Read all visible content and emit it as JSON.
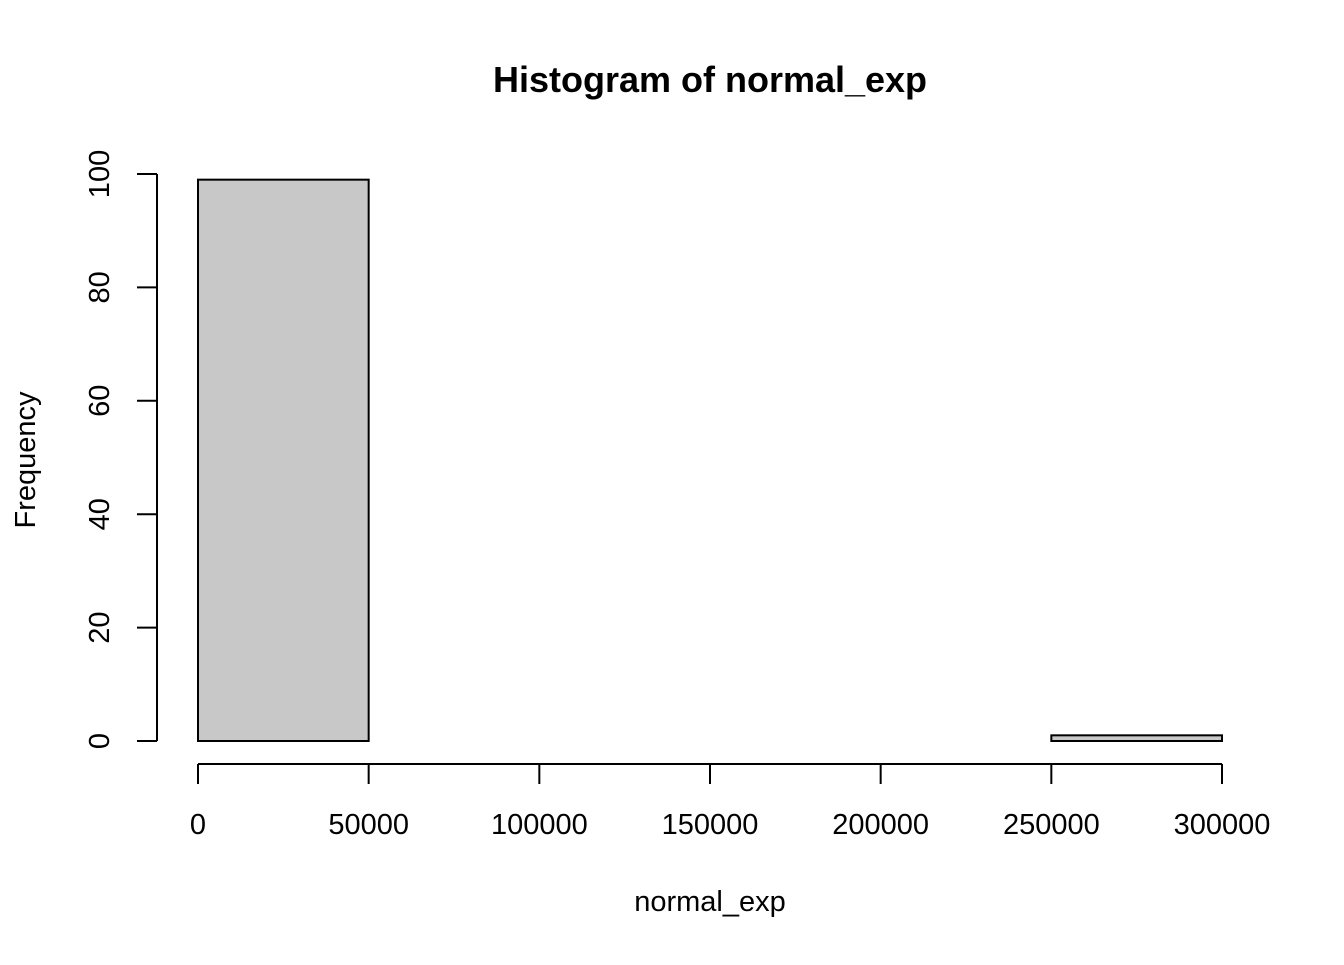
{
  "chart_data": {
    "type": "bar",
    "title": "Histogram of normal_exp",
    "xlabel": "normal_exp",
    "ylabel": "Frequency",
    "bins": [
      {
        "start": 0,
        "end": 50000,
        "count": 99
      },
      {
        "start": 50000,
        "end": 100000,
        "count": 0
      },
      {
        "start": 100000,
        "end": 150000,
        "count": 0
      },
      {
        "start": 150000,
        "end": 200000,
        "count": 0
      },
      {
        "start": 200000,
        "end": 250000,
        "count": 0
      },
      {
        "start": 250000,
        "end": 300000,
        "count": 1
      }
    ],
    "xlim": [
      0,
      300000
    ],
    "ylim": [
      0,
      100
    ],
    "x_ticks": [
      0,
      50000,
      100000,
      150000,
      200000,
      250000,
      300000
    ],
    "x_tick_labels": [
      "0",
      "50000",
      "100000",
      "150000",
      "200000",
      "250000",
      "300000"
    ],
    "y_ticks": [
      0,
      20,
      40,
      60,
      80,
      100
    ],
    "y_tick_labels": [
      "0",
      "20",
      "40",
      "60",
      "80",
      "100"
    ],
    "grid": false,
    "legend": "none",
    "bar_fill": "#c8c8c8",
    "bar_stroke": "#000000"
  }
}
